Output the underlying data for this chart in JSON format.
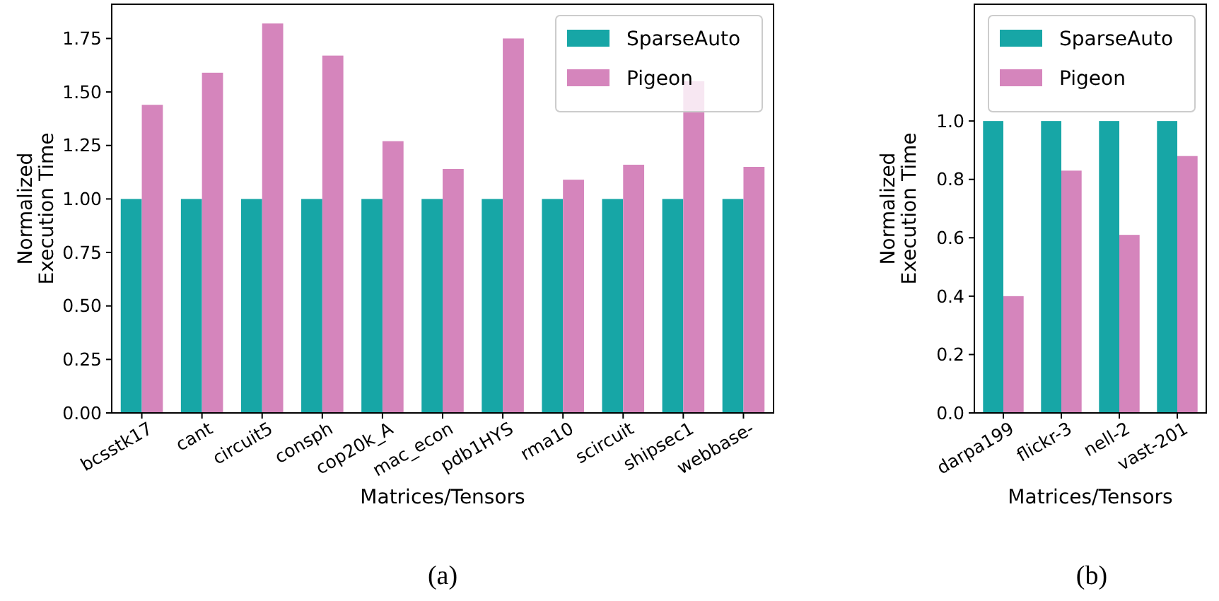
{
  "chart_data": [
    {
      "type": "bar",
      "xlabel": "Matrices/Tensors",
      "ylabel": "Normalized\nExecution Time",
      "categories": [
        "bcsstk17",
        "cant",
        "circuit5",
        "consph",
        "cop20k_A",
        "mac_econ",
        "pdb1HYS",
        "rma10",
        "scircuit",
        "shipsec1",
        "webbase-"
      ],
      "series": [
        {
          "name": "SparseAuto",
          "color": "#17a6a6",
          "values": [
            1,
            1,
            1,
            1,
            1,
            1,
            1,
            1,
            1,
            1,
            1
          ]
        },
        {
          "name": "Pigeon",
          "color": "#d585bc",
          "values": [
            1.44,
            1.59,
            1.82,
            1.67,
            1.27,
            1.14,
            1.75,
            1.09,
            1.16,
            1.55,
            1.15
          ]
        }
      ],
      "ylim": [
        0,
        1.91
      ],
      "yticks": [
        {
          "value": 0,
          "label": "0.00"
        },
        {
          "value": 0.25,
          "label": "0.25"
        },
        {
          "value": 0.5,
          "label": "0.50"
        },
        {
          "value": 0.75,
          "label": "0.75"
        },
        {
          "value": 1,
          "label": "1.00"
        },
        {
          "value": 1.25,
          "label": "1.25"
        },
        {
          "value": 1.5,
          "label": "1.50"
        },
        {
          "value": 1.75,
          "label": "1.75"
        }
      ],
      "legend": "top right",
      "grid": false,
      "annotations": [
        "(a)"
      ]
    },
    {
      "type": "bar",
      "xlabel": "Matrices/Tensors",
      "ylabel": "Normalized\nExecution Time",
      "categories": [
        "darpa199",
        "flickr-3",
        "nell-2",
        "vast-201"
      ],
      "series": [
        {
          "name": "SparseAuto",
          "color": "#17a6a6",
          "values": [
            1,
            1,
            1,
            1
          ]
        },
        {
          "name": "Pigeon",
          "color": "#d585bc",
          "values": [
            0.4,
            0.83,
            0.61,
            0.88
          ]
        }
      ],
      "ylim": [
        0,
        1.4
      ],
      "yticks": [
        {
          "value": 0,
          "label": "0.0"
        },
        {
          "value": 0.2,
          "label": "0.2"
        },
        {
          "value": 0.4,
          "label": "0.4"
        },
        {
          "value": 0.6,
          "label": "0.6"
        },
        {
          "value": 0.8,
          "label": "0.8"
        },
        {
          "value": 1,
          "label": "1.0"
        }
      ],
      "legend": "top right",
      "grid": false,
      "annotations": [
        "(b)"
      ]
    }
  ]
}
